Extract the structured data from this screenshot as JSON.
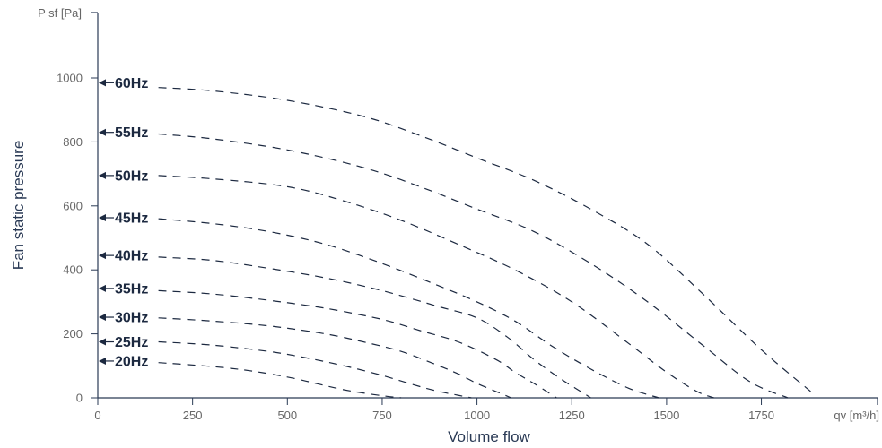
{
  "chart_data": {
    "type": "line",
    "xlabel": "Volume flow",
    "ylabel": "Fan static pressure",
    "x_unit_label": "qv [m³/h]",
    "y_unit_label": "P sf [Pa]",
    "xlim": [
      0,
      2000
    ],
    "ylim": [
      0,
      1200
    ],
    "x_ticks": [
      0,
      250,
      500,
      750,
      1000,
      1250,
      1500,
      1750
    ],
    "y_ticks": [
      0,
      200,
      400,
      600,
      800,
      1000
    ],
    "grid": false,
    "line_style": "dashed",
    "line_color": "#1c2940",
    "series": [
      {
        "name": "60Hz",
        "marker_y": 985,
        "x": [
          160,
          300,
          500,
          700,
          850,
          1000,
          1150,
          1300,
          1450,
          1600,
          1750,
          1880
        ],
        "y": [
          970,
          960,
          930,
          880,
          820,
          750,
          680,
          590,
          480,
          320,
          150,
          20
        ]
      },
      {
        "name": "55Hz",
        "marker_y": 830,
        "x": [
          160,
          300,
          500,
          700,
          850,
          1000,
          1150,
          1300,
          1450,
          1600,
          1720,
          1820
        ],
        "y": [
          825,
          810,
          775,
          720,
          660,
          590,
          520,
          420,
          300,
          160,
          50,
          0
        ]
      },
      {
        "name": "50Hz",
        "marker_y": 695,
        "x": [
          160,
          300,
          500,
          650,
          800,
          950,
          1100,
          1250,
          1400,
          1500,
          1580,
          1625
        ],
        "y": [
          695,
          685,
          660,
          615,
          555,
          480,
          400,
          300,
          170,
          80,
          20,
          0
        ]
      },
      {
        "name": "45Hz",
        "marker_y": 563,
        "x": [
          160,
          300,
          450,
          600,
          750,
          900,
          1000,
          1100,
          1200,
          1300,
          1400,
          1480
        ],
        "y": [
          560,
          545,
          520,
          480,
          420,
          350,
          300,
          240,
          160,
          90,
          30,
          0
        ]
      },
      {
        "name": "40Hz",
        "marker_y": 445,
        "x": [
          160,
          300,
          450,
          600,
          750,
          900,
          1000,
          1080,
          1150,
          1220,
          1280,
          1300
        ],
        "y": [
          440,
          430,
          405,
          375,
          335,
          285,
          250,
          190,
          120,
          60,
          15,
          0
        ]
      },
      {
        "name": "35Hz",
        "marker_y": 342,
        "x": [
          160,
          300,
          450,
          600,
          750,
          850,
          950,
          1050,
          1100,
          1150,
          1190,
          1210
        ],
        "y": [
          335,
          325,
          305,
          280,
          245,
          210,
          175,
          120,
          80,
          45,
          15,
          0
        ]
      },
      {
        "name": "30Hz",
        "marker_y": 252,
        "x": [
          160,
          300,
          450,
          600,
          700,
          800,
          900,
          950,
          1000,
          1050,
          1090
        ],
        "y": [
          250,
          240,
          225,
          200,
          175,
          145,
          100,
          75,
          45,
          20,
          0
        ]
      },
      {
        "name": "25Hz",
        "marker_y": 175,
        "x": [
          160,
          300,
          450,
          550,
          650,
          750,
          850,
          900,
          950,
          985
        ],
        "y": [
          175,
          165,
          145,
          125,
          100,
          70,
          35,
          20,
          8,
          0
        ]
      },
      {
        "name": "20Hz",
        "marker_y": 115,
        "x": [
          160,
          300,
          400,
          500,
          550,
          600,
          650,
          700,
          760,
          800
        ],
        "y": [
          110,
          98,
          85,
          65,
          52,
          38,
          25,
          15,
          5,
          0
        ]
      }
    ]
  }
}
